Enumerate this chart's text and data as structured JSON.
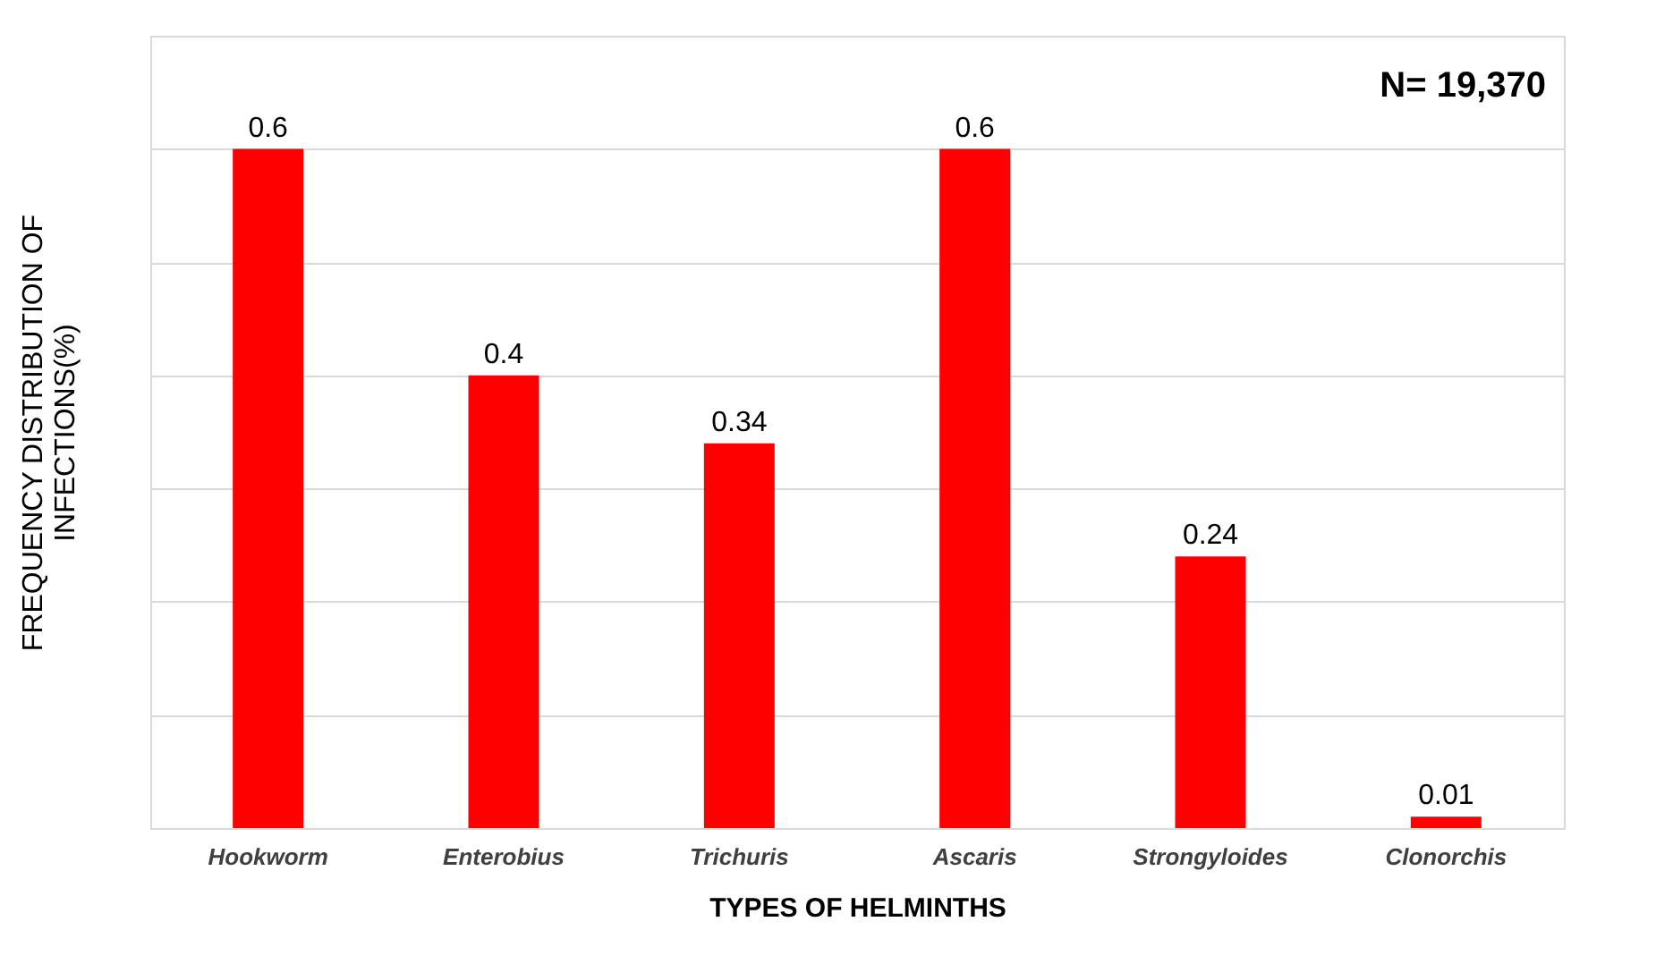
{
  "chart_data": {
    "type": "bar",
    "xlabel": "TYPES OF HELMINTHS",
    "ylabel": "FREQUENCY DISTRIBUTION OF INFECTIONS(%)",
    "categories": [
      "Hookworm",
      "Enterobius",
      "Trichuris",
      "Ascaris",
      "Strongyloides",
      "Clonorchis"
    ],
    "values": [
      0.6,
      0.4,
      0.34,
      0.6,
      0.24,
      0.01
    ],
    "color": "#ff0000",
    "ylim": [
      0,
      0.7
    ],
    "yticks": [
      0,
      0.1,
      0.2,
      0.3,
      0.4,
      0.5,
      0.6
    ],
    "tick_labels": "x",
    "grid": "y",
    "data_labels": true,
    "annotations": [
      "N= 19,370"
    ]
  }
}
